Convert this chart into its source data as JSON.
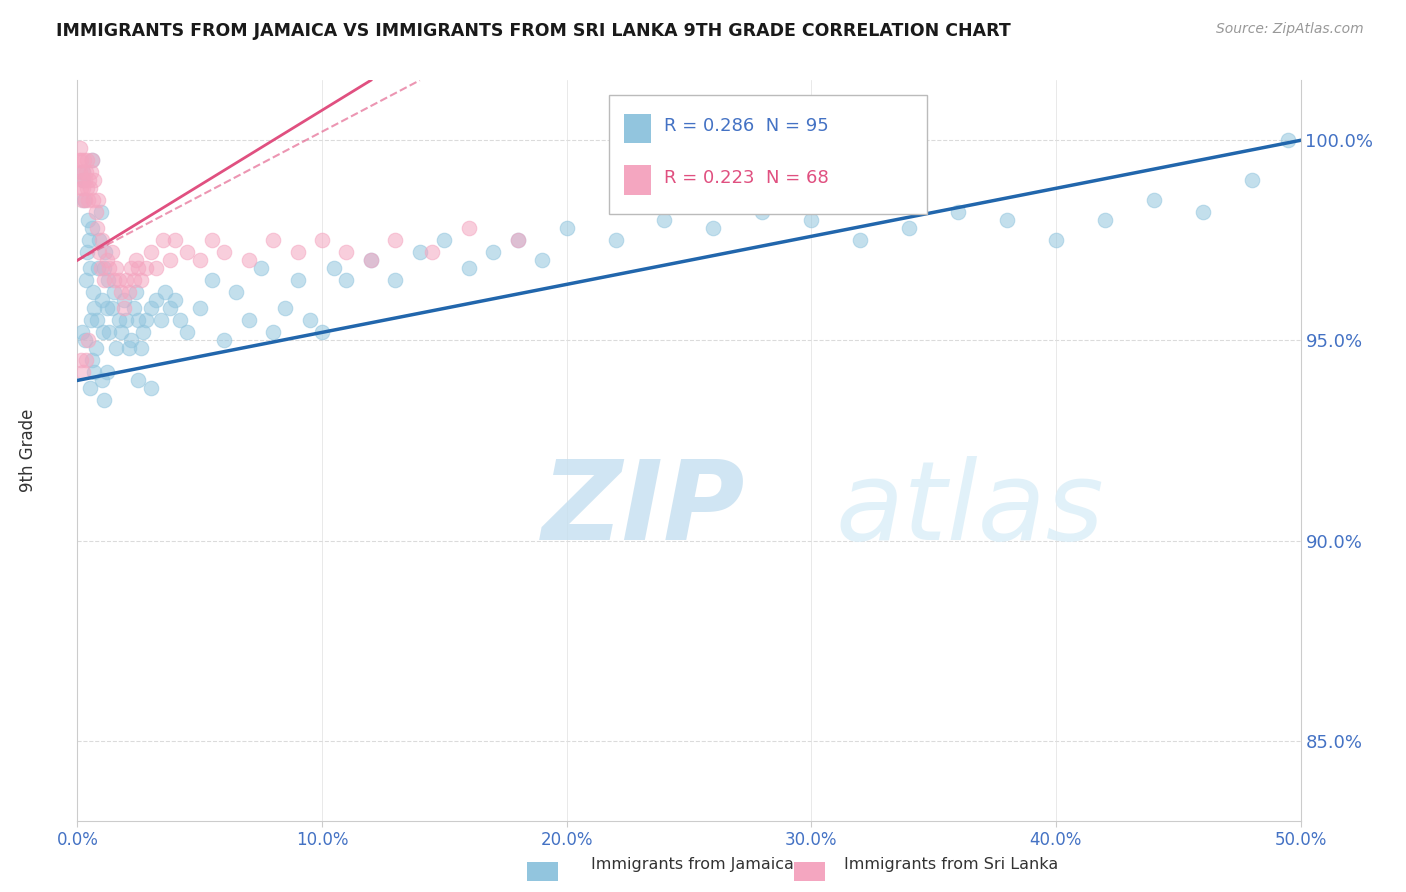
{
  "title": "IMMIGRANTS FROM JAMAICA VS IMMIGRANTS FROM SRI LANKA 9TH GRADE CORRELATION CHART",
  "source": "Source: ZipAtlas.com",
  "ylabel": "9th Grade",
  "xlim": [
    0.0,
    50.0
  ],
  "ylim": [
    83.0,
    101.5
  ],
  "xticks": [
    0.0,
    10.0,
    20.0,
    30.0,
    40.0,
    50.0
  ],
  "xtick_labels": [
    "0.0%",
    "10.0%",
    "20.0%",
    "30.0%",
    "40.0%",
    "50.0%"
  ],
  "yticks": [
    85.0,
    90.0,
    95.0,
    100.0
  ],
  "ytick_labels": [
    "85.0%",
    "90.0%",
    "95.0%",
    "100.0%"
  ],
  "legend_jamaica": "Immigrants from Jamaica",
  "legend_srilanka": "Immigrants from Sri Lanka",
  "r_jamaica": 0.286,
  "n_jamaica": 95,
  "r_srilanka": 0.223,
  "n_srilanka": 68,
  "color_jamaica": "#92c5de",
  "color_srilanka": "#f4a6c0",
  "line_color_jamaica": "#2166ac",
  "line_color_srilanka": "#e05080",
  "watermark_color": "#daeef8",
  "background_color": "#ffffff",
  "grid_color": "#cccccc",
  "blue_line_y0": 94.0,
  "blue_line_y1": 100.0,
  "pink_line_y0": 97.0,
  "pink_line_y1": 101.5,
  "pink_line_x1": 12.0,
  "pink_dash_x0": 0.0,
  "pink_dash_y0": 97.0,
  "pink_dash_x1": 14.0,
  "pink_dash_y1": 101.5,
  "jamaica_x": [
    0.18,
    0.22,
    0.25,
    0.28,
    0.31,
    0.35,
    0.38,
    0.42,
    0.46,
    0.5,
    0.54,
    0.58,
    0.62,
    0.65,
    0.7,
    0.75,
    0.8,
    0.85,
    0.9,
    0.95,
    1.0,
    1.05,
    1.1,
    1.15,
    1.2,
    1.25,
    1.3,
    1.4,
    1.5,
    1.6,
    1.7,
    1.8,
    1.9,
    2.0,
    2.1,
    2.2,
    2.3,
    2.4,
    2.5,
    2.6,
    2.7,
    2.8,
    3.0,
    3.2,
    3.4,
    3.6,
    3.8,
    4.0,
    4.2,
    4.5,
    5.0,
    5.5,
    6.0,
    6.5,
    7.0,
    7.5,
    8.0,
    8.5,
    9.0,
    9.5,
    10.0,
    10.5,
    11.0,
    12.0,
    13.0,
    14.0,
    15.0,
    16.0,
    17.0,
    18.0,
    19.0,
    20.0,
    22.0,
    24.0,
    26.0,
    28.0,
    30.0,
    32.0,
    34.0,
    36.0,
    38.0,
    40.0,
    42.0,
    44.0,
    46.0,
    48.0,
    49.5,
    1.0,
    1.1,
    1.2,
    0.5,
    0.6,
    0.7,
    2.5,
    3.0
  ],
  "jamaica_y": [
    95.2,
    99.2,
    99.0,
    98.5,
    95.0,
    96.5,
    97.2,
    98.0,
    97.5,
    96.8,
    95.5,
    99.5,
    97.8,
    96.2,
    95.8,
    94.8,
    95.5,
    96.8,
    97.5,
    98.2,
    96.0,
    95.2,
    96.8,
    97.2,
    95.8,
    96.5,
    95.2,
    95.8,
    96.2,
    94.8,
    95.5,
    95.2,
    96.0,
    95.5,
    94.8,
    95.0,
    95.8,
    96.2,
    95.5,
    94.8,
    95.2,
    95.5,
    95.8,
    96.0,
    95.5,
    96.2,
    95.8,
    96.0,
    95.5,
    95.2,
    95.8,
    96.5,
    95.0,
    96.2,
    95.5,
    96.8,
    95.2,
    95.8,
    96.5,
    95.5,
    95.2,
    96.8,
    96.5,
    97.0,
    96.5,
    97.2,
    97.5,
    96.8,
    97.2,
    97.5,
    97.0,
    97.8,
    97.5,
    98.0,
    97.8,
    98.2,
    98.0,
    97.5,
    97.8,
    98.2,
    98.0,
    97.5,
    98.0,
    98.5,
    98.2,
    99.0,
    100.0,
    94.0,
    93.5,
    94.2,
    93.8,
    94.5,
    94.2,
    94.0,
    93.8
  ],
  "srilanka_x": [
    0.08,
    0.1,
    0.12,
    0.14,
    0.16,
    0.18,
    0.2,
    0.22,
    0.25,
    0.28,
    0.3,
    0.33,
    0.35,
    0.38,
    0.4,
    0.43,
    0.46,
    0.5,
    0.55,
    0.6,
    0.65,
    0.7,
    0.75,
    0.8,
    0.85,
    0.9,
    0.95,
    1.0,
    1.1,
    1.2,
    1.3,
    1.4,
    1.5,
    1.6,
    1.7,
    1.8,
    1.9,
    2.0,
    2.1,
    2.2,
    2.3,
    2.4,
    2.5,
    2.6,
    2.8,
    3.0,
    3.2,
    3.5,
    3.8,
    4.0,
    4.5,
    5.0,
    5.5,
    6.0,
    7.0,
    8.0,
    9.0,
    10.0,
    11.0,
    12.0,
    13.0,
    14.5,
    16.0,
    18.0,
    0.15,
    0.25,
    0.35,
    0.45
  ],
  "srilanka_y": [
    99.5,
    99.8,
    99.2,
    98.8,
    99.5,
    99.0,
    98.5,
    99.2,
    98.8,
    99.5,
    99.0,
    98.5,
    99.2,
    98.8,
    99.5,
    98.5,
    99.0,
    98.8,
    99.2,
    99.5,
    98.5,
    99.0,
    98.2,
    97.8,
    98.5,
    97.2,
    96.8,
    97.5,
    96.5,
    97.0,
    96.8,
    97.2,
    96.5,
    96.8,
    96.5,
    96.2,
    95.8,
    96.5,
    96.2,
    96.8,
    96.5,
    97.0,
    96.8,
    96.5,
    96.8,
    97.2,
    96.8,
    97.5,
    97.0,
    97.5,
    97.2,
    97.0,
    97.5,
    97.2,
    97.0,
    97.5,
    97.2,
    97.5,
    97.2,
    97.0,
    97.5,
    97.2,
    97.8,
    97.5,
    94.5,
    94.2,
    94.5,
    95.0
  ]
}
